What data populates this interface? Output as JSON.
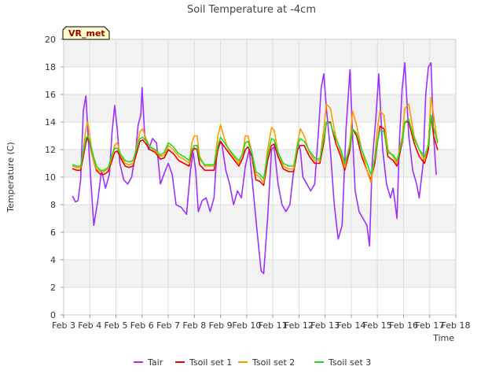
{
  "chart_data": {
    "type": "line",
    "title": "Soil Temperature at -4cm",
    "xlabel": "Time",
    "ylabel": "Temperature (C)",
    "badge": "VR_met",
    "xlim": [
      3,
      18
    ],
    "ylim": [
      0,
      20
    ],
    "x_ticks": [
      3,
      4,
      5,
      6,
      7,
      8,
      9,
      10,
      11,
      12,
      13,
      14,
      15,
      16,
      17,
      18
    ],
    "x_tick_labels": [
      "Feb 3",
      "Feb 4",
      "Feb 5",
      "Feb 6",
      "Feb 7",
      "Feb 8",
      "Feb 9",
      "Feb 10",
      "Feb 11",
      "Feb 12",
      "Feb 13",
      "Feb 14",
      "Feb 15",
      "Feb 16",
      "Feb 17",
      "Feb 18"
    ],
    "y_ticks": [
      0,
      2,
      4,
      6,
      8,
      10,
      12,
      14,
      16,
      18,
      20
    ],
    "y_tick_labels": [
      "0",
      "2",
      "4",
      "6",
      "8",
      "10",
      "12",
      "14",
      "16",
      "18",
      "20"
    ],
    "grid": true,
    "legend_position": "bottom",
    "series": [
      {
        "name": "Tair",
        "color": "#9b30ff",
        "x": [
          3.35,
          3.45,
          3.55,
          3.65,
          3.75,
          3.85,
          3.95,
          4.05,
          4.15,
          4.3,
          4.45,
          4.6,
          4.75,
          4.85,
          4.95,
          5.05,
          5.15,
          5.3,
          5.45,
          5.6,
          5.75,
          5.85,
          5.95,
          6.0,
          6.1,
          6.25,
          6.4,
          6.55,
          6.7,
          6.85,
          7.0,
          7.15,
          7.3,
          7.5,
          7.7,
          7.85,
          7.95,
          8.05,
          8.15,
          8.3,
          8.45,
          8.6,
          8.75,
          8.85,
          8.95,
          9.05,
          9.2,
          9.35,
          9.5,
          9.65,
          9.8,
          9.95,
          10.1,
          10.25,
          10.4,
          10.55,
          10.65,
          10.8,
          10.95,
          11.05,
          11.2,
          11.35,
          11.5,
          11.65,
          11.8,
          11.95,
          12.05,
          12.15,
          12.3,
          12.45,
          12.6,
          12.75,
          12.85,
          12.95,
          13.05,
          13.2,
          13.35,
          13.5,
          13.65,
          13.8,
          13.95,
          14.05,
          14.15,
          14.3,
          14.45,
          14.6,
          14.7,
          14.8,
          14.95,
          15.05,
          15.2,
          15.35,
          15.5,
          15.6,
          15.75,
          15.85,
          15.95,
          16.05,
          16.2,
          16.35,
          16.5,
          16.6,
          16.75,
          16.85,
          16.95,
          17.05,
          17.15,
          17.25
        ],
        "y": [
          8.6,
          8.2,
          8.3,
          9.8,
          14.8,
          15.9,
          12.5,
          9.5,
          6.5,
          8.2,
          10.5,
          9.2,
          10.2,
          13.2,
          15.2,
          13.5,
          11.0,
          9.8,
          9.5,
          10.0,
          11.8,
          13.8,
          14.5,
          16.5,
          13.0,
          12.0,
          12.8,
          12.5,
          9.5,
          10.3,
          11.0,
          10.2,
          8.0,
          7.8,
          7.3,
          10.5,
          11.8,
          10.5,
          7.5,
          8.3,
          8.5,
          7.5,
          8.5,
          11.5,
          12.6,
          12.4,
          10.5,
          9.5,
          8.0,
          9.0,
          8.5,
          10.8,
          12.0,
          9.0,
          6.0,
          3.2,
          3.0,
          7.0,
          12.0,
          12.2,
          9.5,
          8.0,
          7.5,
          8.0,
          10.5,
          12.5,
          12.0,
          10.0,
          9.5,
          9.0,
          9.5,
          13.5,
          16.5,
          17.5,
          15.0,
          12.0,
          8.0,
          5.5,
          6.5,
          13.5,
          17.8,
          13.0,
          9.0,
          7.5,
          7.0,
          6.5,
          5.0,
          11.0,
          14.5,
          17.5,
          12.0,
          9.5,
          8.5,
          9.2,
          7.0,
          13.0,
          16.5,
          18.3,
          13.0,
          10.5,
          9.5,
          8.5,
          11.0,
          16.0,
          18.0,
          18.3,
          13.0,
          10.2
        ]
      },
      {
        "name": "Tsoil set 1",
        "color": "#ee0000",
        "x": [
          3.35,
          3.5,
          3.65,
          3.75,
          3.85,
          3.92,
          4.0,
          4.1,
          4.25,
          4.4,
          4.55,
          4.7,
          4.85,
          4.95,
          5.05,
          5.2,
          5.35,
          5.5,
          5.65,
          5.8,
          5.92,
          6.02,
          6.15,
          6.3,
          6.5,
          6.7,
          6.85,
          7.0,
          7.2,
          7.4,
          7.6,
          7.8,
          7.9,
          8.0,
          8.1,
          8.2,
          8.4,
          8.6,
          8.75,
          8.9,
          9.0,
          9.15,
          9.3,
          9.5,
          9.7,
          9.85,
          9.95,
          10.05,
          10.2,
          10.35,
          10.5,
          10.65,
          10.8,
          10.95,
          11.05,
          11.2,
          11.4,
          11.6,
          11.8,
          11.95,
          12.05,
          12.2,
          12.4,
          12.6,
          12.8,
          12.95,
          13.05,
          13.2,
          13.4,
          13.6,
          13.75,
          13.95,
          14.05,
          14.2,
          14.4,
          14.6,
          14.75,
          14.9,
          15.0,
          15.1,
          15.25,
          15.4,
          15.6,
          15.75,
          15.95,
          16.05,
          16.2,
          16.4,
          16.6,
          16.8,
          16.95,
          17.05,
          17.15,
          17.3
        ],
        "y": [
          10.6,
          10.5,
          10.5,
          11.5,
          12.5,
          12.9,
          12.5,
          11.5,
          10.5,
          10.2,
          10.2,
          10.4,
          11.2,
          11.8,
          11.9,
          11.3,
          10.8,
          10.7,
          10.8,
          11.8,
          12.6,
          12.7,
          12.4,
          12.0,
          11.8,
          11.3,
          11.4,
          12.0,
          11.7,
          11.2,
          11.0,
          10.8,
          11.8,
          12.1,
          12.0,
          10.9,
          10.5,
          10.5,
          10.5,
          12.0,
          12.6,
          12.2,
          11.8,
          11.3,
          10.8,
          11.4,
          12.0,
          12.2,
          11.5,
          9.8,
          9.7,
          9.4,
          11.2,
          12.3,
          12.4,
          11.5,
          10.6,
          10.4,
          10.4,
          12.0,
          12.3,
          12.3,
          11.5,
          11.0,
          11.0,
          12.5,
          14.0,
          14.0,
          12.5,
          11.5,
          10.5,
          12.0,
          13.5,
          13.0,
          11.5,
          10.5,
          9.8,
          11.0,
          12.5,
          13.7,
          13.5,
          11.5,
          11.2,
          10.8,
          12.5,
          14.0,
          14.0,
          12.5,
          11.5,
          11.0,
          12.0,
          14.5,
          13.0,
          12.0
        ]
      },
      {
        "name": "Tsoil set 2",
        "color": "#ff9900",
        "x": [
          3.35,
          3.5,
          3.65,
          3.75,
          3.85,
          3.92,
          4.0,
          4.1,
          4.25,
          4.4,
          4.55,
          4.7,
          4.85,
          4.95,
          5.05,
          5.2,
          5.35,
          5.5,
          5.65,
          5.8,
          5.92,
          6.02,
          6.15,
          6.3,
          6.5,
          6.7,
          6.85,
          7.0,
          7.2,
          7.4,
          7.6,
          7.8,
          7.9,
          8.0,
          8.1,
          8.2,
          8.4,
          8.6,
          8.75,
          8.9,
          9.0,
          9.15,
          9.3,
          9.5,
          9.7,
          9.85,
          9.95,
          10.05,
          10.2,
          10.35,
          10.5,
          10.65,
          10.8,
          10.95,
          11.05,
          11.2,
          11.4,
          11.6,
          11.8,
          11.95,
          12.05,
          12.2,
          12.4,
          12.6,
          12.8,
          12.95,
          13.05,
          13.2,
          13.4,
          13.6,
          13.75,
          13.95,
          14.05,
          14.2,
          14.4,
          14.6,
          14.75,
          14.9,
          15.0,
          15.1,
          15.25,
          15.4,
          15.6,
          15.75,
          15.95,
          16.05,
          16.2,
          16.4,
          16.6,
          16.8,
          16.95,
          17.05,
          17.15,
          17.3
        ],
        "y": [
          10.8,
          10.7,
          10.7,
          12.0,
          13.5,
          14.0,
          13.0,
          11.5,
          10.6,
          10.4,
          10.4,
          10.6,
          11.5,
          12.3,
          12.5,
          11.5,
          11.0,
          10.9,
          11.0,
          12.3,
          13.3,
          13.5,
          12.8,
          12.2,
          11.9,
          11.5,
          11.6,
          12.3,
          12.0,
          11.5,
          11.3,
          11.0,
          12.5,
          13.0,
          13.0,
          11.5,
          10.8,
          10.8,
          10.8,
          13.0,
          13.8,
          12.8,
          12.0,
          11.5,
          11.0,
          11.8,
          13.0,
          13.0,
          11.8,
          10.2,
          10.0,
          9.6,
          12.0,
          13.6,
          13.4,
          11.8,
          10.8,
          10.6,
          10.6,
          12.5,
          13.5,
          13.0,
          11.8,
          11.2,
          11.2,
          13.5,
          15.3,
          15.0,
          13.0,
          11.8,
          10.7,
          12.5,
          14.8,
          13.8,
          12.0,
          10.5,
          9.6,
          11.5,
          13.5,
          14.8,
          14.5,
          12.0,
          11.5,
          11.0,
          13.0,
          15.0,
          15.3,
          13.0,
          12.0,
          11.2,
          12.5,
          15.8,
          14.5,
          12.5
        ]
      },
      {
        "name": "Tsoil set 3",
        "color": "#22dd22",
        "x": [
          3.35,
          3.5,
          3.65,
          3.75,
          3.85,
          3.92,
          4.0,
          4.1,
          4.25,
          4.4,
          4.55,
          4.7,
          4.85,
          4.95,
          5.05,
          5.2,
          5.35,
          5.5,
          5.65,
          5.8,
          5.92,
          6.02,
          6.15,
          6.3,
          6.5,
          6.7,
          6.85,
          7.0,
          7.2,
          7.4,
          7.6,
          7.8,
          7.9,
          8.0,
          8.1,
          8.2,
          8.4,
          8.6,
          8.75,
          8.9,
          9.0,
          9.15,
          9.3,
          9.5,
          9.7,
          9.85,
          9.95,
          10.05,
          10.2,
          10.35,
          10.5,
          10.65,
          10.8,
          10.95,
          11.05,
          11.2,
          11.4,
          11.6,
          11.8,
          11.95,
          12.05,
          12.2,
          12.4,
          12.6,
          12.8,
          12.95,
          13.05,
          13.2,
          13.4,
          13.6,
          13.75,
          13.95,
          14.05,
          14.2,
          14.4,
          14.6,
          14.75,
          14.9,
          15.0,
          15.1,
          15.25,
          15.4,
          15.6,
          15.75,
          15.95,
          16.05,
          16.2,
          16.4,
          16.6,
          16.8,
          16.95,
          17.05,
          17.15,
          17.3
        ],
        "y": [
          10.9,
          10.8,
          10.8,
          11.8,
          12.8,
          13.0,
          12.6,
          11.8,
          10.8,
          10.5,
          10.5,
          10.7,
          11.6,
          12.1,
          12.1,
          11.6,
          11.2,
          11.1,
          11.2,
          12.1,
          12.8,
          12.9,
          12.6,
          12.2,
          12.0,
          11.6,
          11.8,
          12.5,
          12.2,
          11.7,
          11.5,
          11.2,
          12.0,
          12.3,
          12.3,
          11.3,
          10.9,
          10.9,
          10.9,
          12.3,
          12.9,
          12.5,
          12.1,
          11.6,
          11.2,
          11.7,
          12.5,
          12.6,
          11.8,
          10.4,
          10.2,
          9.9,
          11.6,
          12.8,
          12.7,
          11.8,
          11.0,
          10.8,
          10.8,
          12.3,
          12.8,
          12.6,
          11.9,
          11.4,
          11.3,
          12.8,
          14.0,
          13.9,
          12.8,
          12.0,
          11.0,
          12.2,
          13.5,
          13.2,
          12.0,
          11.0,
          10.2,
          11.3,
          12.6,
          13.4,
          13.3,
          11.8,
          11.6,
          11.2,
          12.6,
          14.0,
          14.2,
          12.8,
          12.0,
          11.5,
          12.3,
          14.5,
          13.6,
          12.5
        ]
      }
    ]
  }
}
